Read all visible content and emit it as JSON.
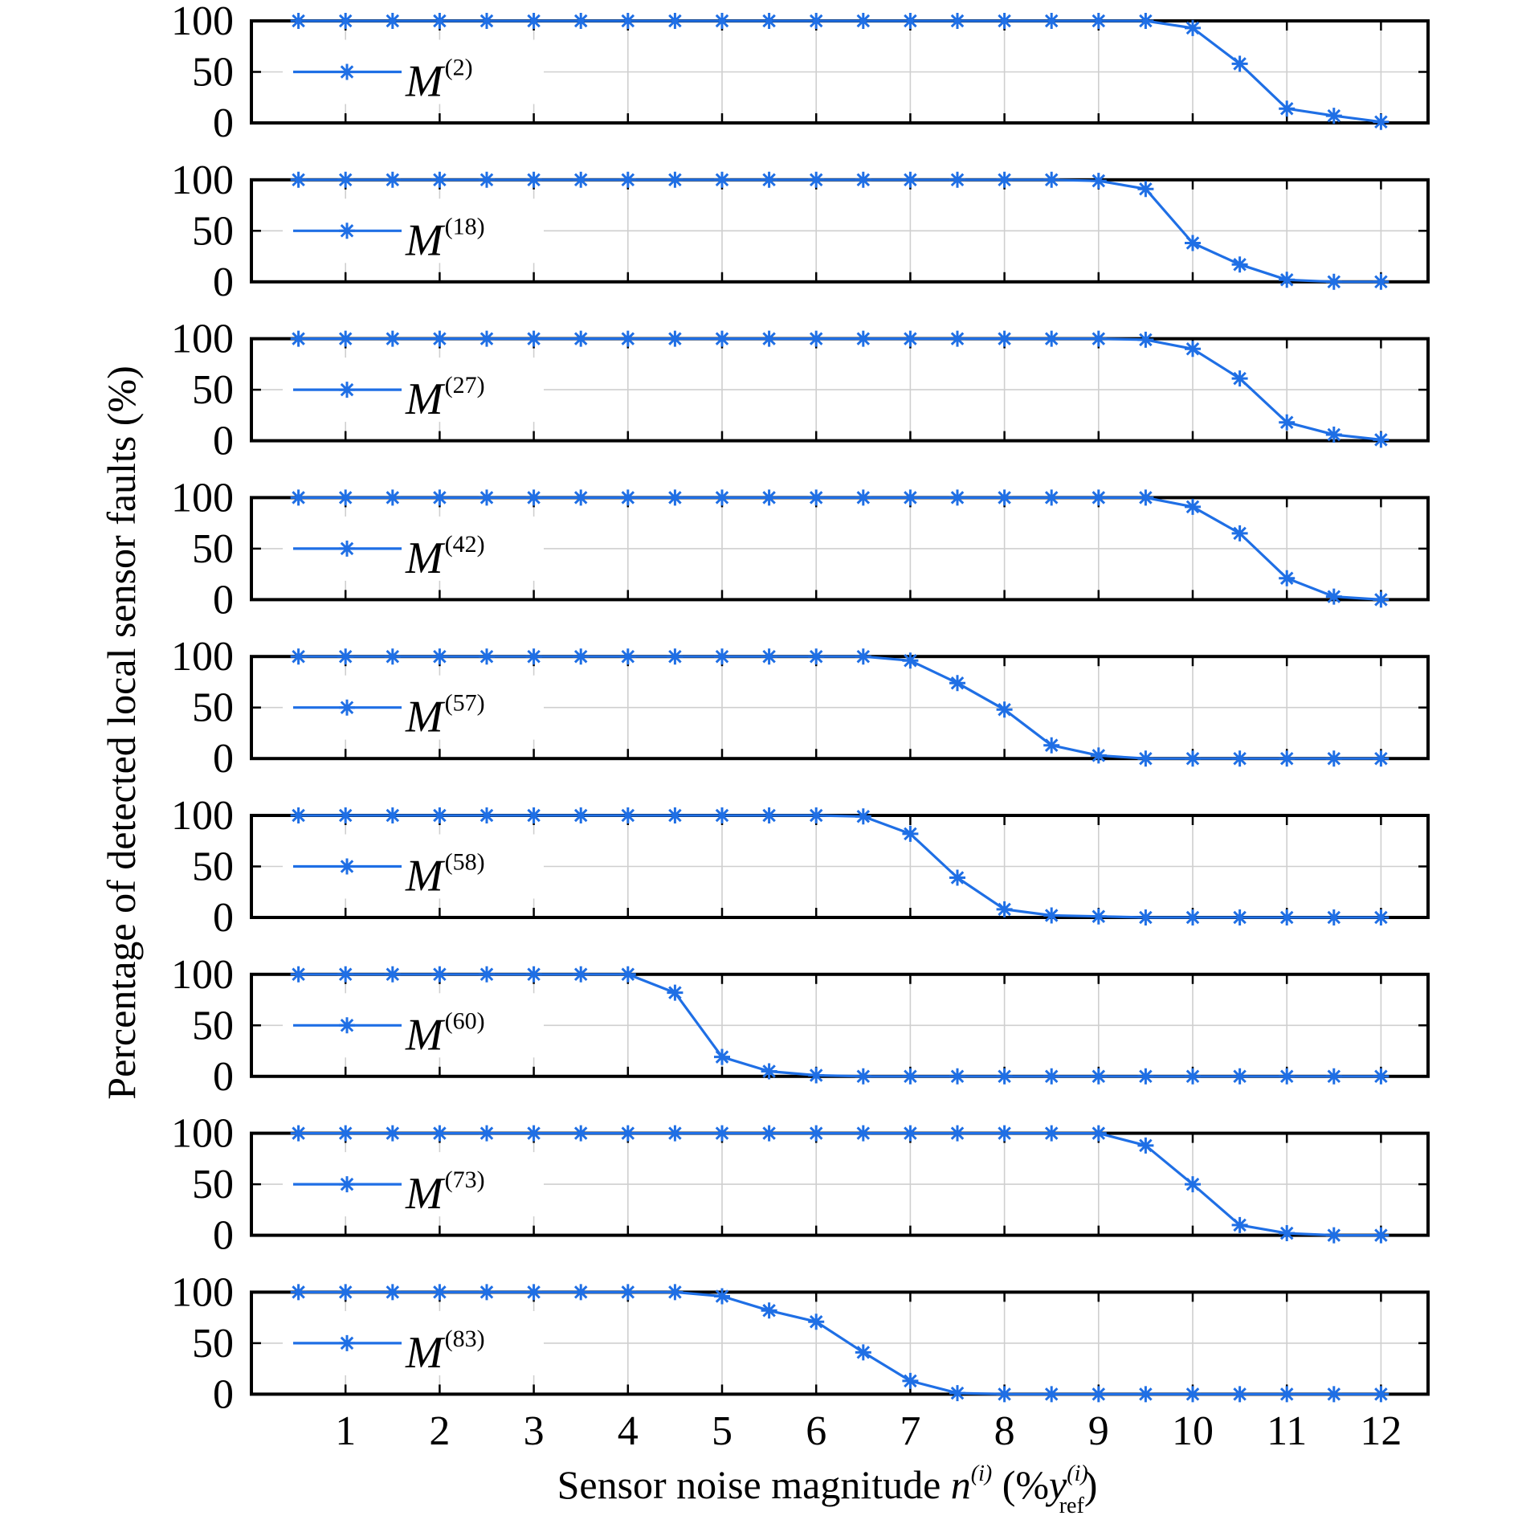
{
  "chart_data": {
    "type": "line",
    "xlabel": {
      "main": "Sensor noise magnitude ",
      "var": "n",
      "var_sup": "(i)",
      "paren_open": " (%",
      "ref_var": "y",
      "ref_sup": "(i)",
      "ref_sub": "ref",
      "paren_close": ")"
    },
    "ylabel": "Percentage of detected local sensor faults (%)",
    "x_ticks": [
      "1",
      "2",
      "3",
      "4",
      "5",
      "6",
      "7",
      "8",
      "9",
      "10",
      "11",
      "12"
    ],
    "y_ticks": [
      "0",
      "50",
      "100"
    ],
    "ylim": [
      0,
      100
    ],
    "xlim": [
      0,
      12.5
    ],
    "grid": true,
    "legend_position": "left",
    "x": [
      0.5,
      1,
      1.5,
      2,
      2.5,
      3,
      3.5,
      4,
      4.5,
      5,
      5.5,
      6,
      6.5,
      7,
      7.5,
      8,
      8.5,
      9,
      9.5,
      10,
      10.5,
      11,
      11.5,
      12
    ],
    "colors": {
      "series": "#1f6fe5"
    },
    "series": [
      {
        "name_base": "M",
        "name_sup": "(2)",
        "values": [
          100,
          100,
          100,
          100,
          100,
          100,
          100,
          100,
          100,
          100,
          100,
          100,
          100,
          100,
          100,
          100,
          100,
          100,
          100,
          93,
          58,
          14,
          7,
          1
        ]
      },
      {
        "name_base": "M",
        "name_sup": "(18)",
        "values": [
          100,
          100,
          100,
          100,
          100,
          100,
          100,
          100,
          100,
          100,
          100,
          100,
          100,
          100,
          100,
          100,
          100,
          99,
          91,
          38,
          17,
          2,
          0,
          0
        ]
      },
      {
        "name_base": "M",
        "name_sup": "(27)",
        "values": [
          100,
          100,
          100,
          100,
          100,
          100,
          100,
          100,
          100,
          100,
          100,
          100,
          100,
          100,
          100,
          100,
          100,
          100,
          99,
          90,
          61,
          18,
          6,
          1
        ]
      },
      {
        "name_base": "M",
        "name_sup": "(42)",
        "values": [
          100,
          100,
          100,
          100,
          100,
          100,
          100,
          100,
          100,
          100,
          100,
          100,
          100,
          100,
          100,
          100,
          100,
          100,
          100,
          91,
          65,
          21,
          3,
          0
        ]
      },
      {
        "name_base": "M",
        "name_sup": "(57)",
        "values": [
          100,
          100,
          100,
          100,
          100,
          100,
          100,
          100,
          100,
          100,
          100,
          100,
          100,
          96,
          74,
          48,
          13,
          3,
          0,
          0,
          0,
          0,
          0,
          0
        ]
      },
      {
        "name_base": "M",
        "name_sup": "(58)",
        "values": [
          100,
          100,
          100,
          100,
          100,
          100,
          100,
          100,
          100,
          100,
          100,
          100,
          99,
          82,
          39,
          8,
          2,
          1,
          0,
          0,
          0,
          0,
          0,
          0
        ]
      },
      {
        "name_base": "M",
        "name_sup": "(60)",
        "values": [
          100,
          100,
          100,
          100,
          100,
          100,
          100,
          100,
          82,
          19,
          5,
          1,
          0,
          0,
          0,
          0,
          0,
          0,
          0,
          0,
          0,
          0,
          0,
          0
        ]
      },
      {
        "name_base": "M",
        "name_sup": "(73)",
        "values": [
          100,
          100,
          100,
          100,
          100,
          100,
          100,
          100,
          100,
          100,
          100,
          100,
          100,
          100,
          100,
          100,
          100,
          100,
          88,
          50,
          10,
          2,
          0,
          0
        ]
      },
      {
        "name_base": "M",
        "name_sup": "(83)",
        "values": [
          100,
          100,
          100,
          100,
          100,
          100,
          100,
          100,
          100,
          96,
          82,
          71,
          41,
          13,
          1,
          0,
          0,
          0,
          0,
          0,
          0,
          0,
          0,
          0
        ]
      }
    ]
  }
}
